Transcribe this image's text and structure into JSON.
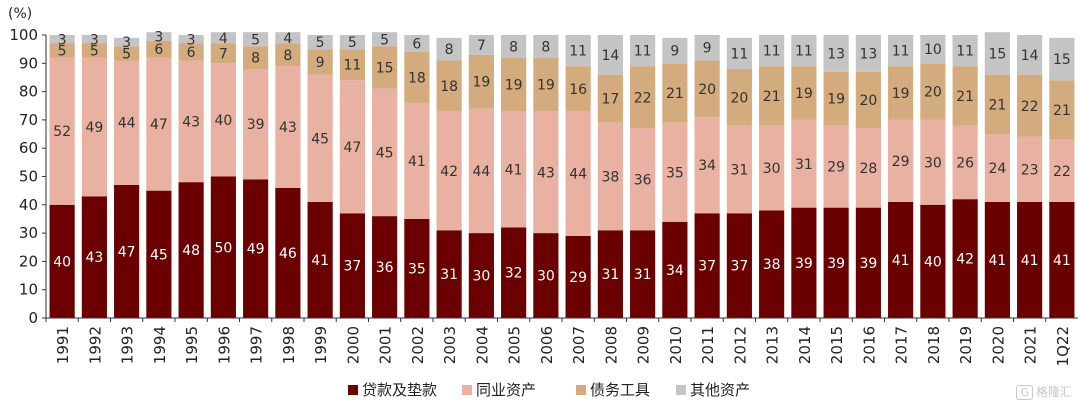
{
  "chart_data": {
    "type": "bar",
    "stacked": true,
    "unit_label": "(%)",
    "categories": [
      "1991",
      "1992",
      "1993",
      "1994",
      "1995",
      "1996",
      "1997",
      "1998",
      "1999",
      "2000",
      "2001",
      "2002",
      "2003",
      "2004",
      "2005",
      "2006",
      "2007",
      "2008",
      "2009",
      "2010",
      "2011",
      "2012",
      "2013",
      "2014",
      "2015",
      "2016",
      "2017",
      "2018",
      "2019",
      "2020",
      "2021",
      "1Q22"
    ],
    "ylim": [
      0,
      100
    ],
    "yticks": [
      0,
      10,
      20,
      30,
      40,
      50,
      60,
      70,
      80,
      90,
      100
    ],
    "grid": false,
    "legend_position": "bottom",
    "series": [
      {
        "name": "贷款及垫款",
        "color": "#6b0000",
        "label_color": "#ffffff",
        "values": [
          40,
          43,
          47,
          45,
          48,
          50,
          49,
          46,
          41,
          37,
          36,
          35,
          31,
          30,
          32,
          30,
          29,
          31,
          31,
          34,
          37,
          37,
          38,
          39,
          39,
          39,
          41,
          40,
          42,
          41,
          41,
          41
        ]
      },
      {
        "name": "同业资产",
        "color": "#e8b1a2",
        "label_color": "#333333",
        "values": [
          52,
          49,
          44,
          47,
          43,
          40,
          39,
          43,
          45,
          47,
          45,
          41,
          42,
          44,
          41,
          43,
          44,
          38,
          36,
          35,
          34,
          31,
          30,
          31,
          29,
          28,
          29,
          30,
          26,
          24,
          23,
          22
        ]
      },
      {
        "name": "债务工具",
        "color": "#d3ab7c",
        "label_color": "#333333",
        "values": [
          5,
          5,
          5,
          6,
          6,
          7,
          8,
          8,
          9,
          11,
          15,
          18,
          18,
          19,
          19,
          19,
          16,
          17,
          22,
          21,
          20,
          20,
          21,
          19,
          19,
          20,
          19,
          20,
          21,
          21,
          22,
          21
        ]
      },
      {
        "name": "其他资产",
        "color": "#c4c4c4",
        "label_color": "#333333",
        "values": [
          3,
          3,
          3,
          3,
          3,
          4,
          5,
          4,
          5,
          5,
          5,
          6,
          8,
          7,
          8,
          8,
          11,
          14,
          11,
          9,
          9,
          11,
          11,
          11,
          13,
          13,
          11,
          10,
          11,
          15,
          14,
          15
        ]
      }
    ]
  },
  "watermark": {
    "icon_text": "G",
    "text": "格隆汇"
  }
}
